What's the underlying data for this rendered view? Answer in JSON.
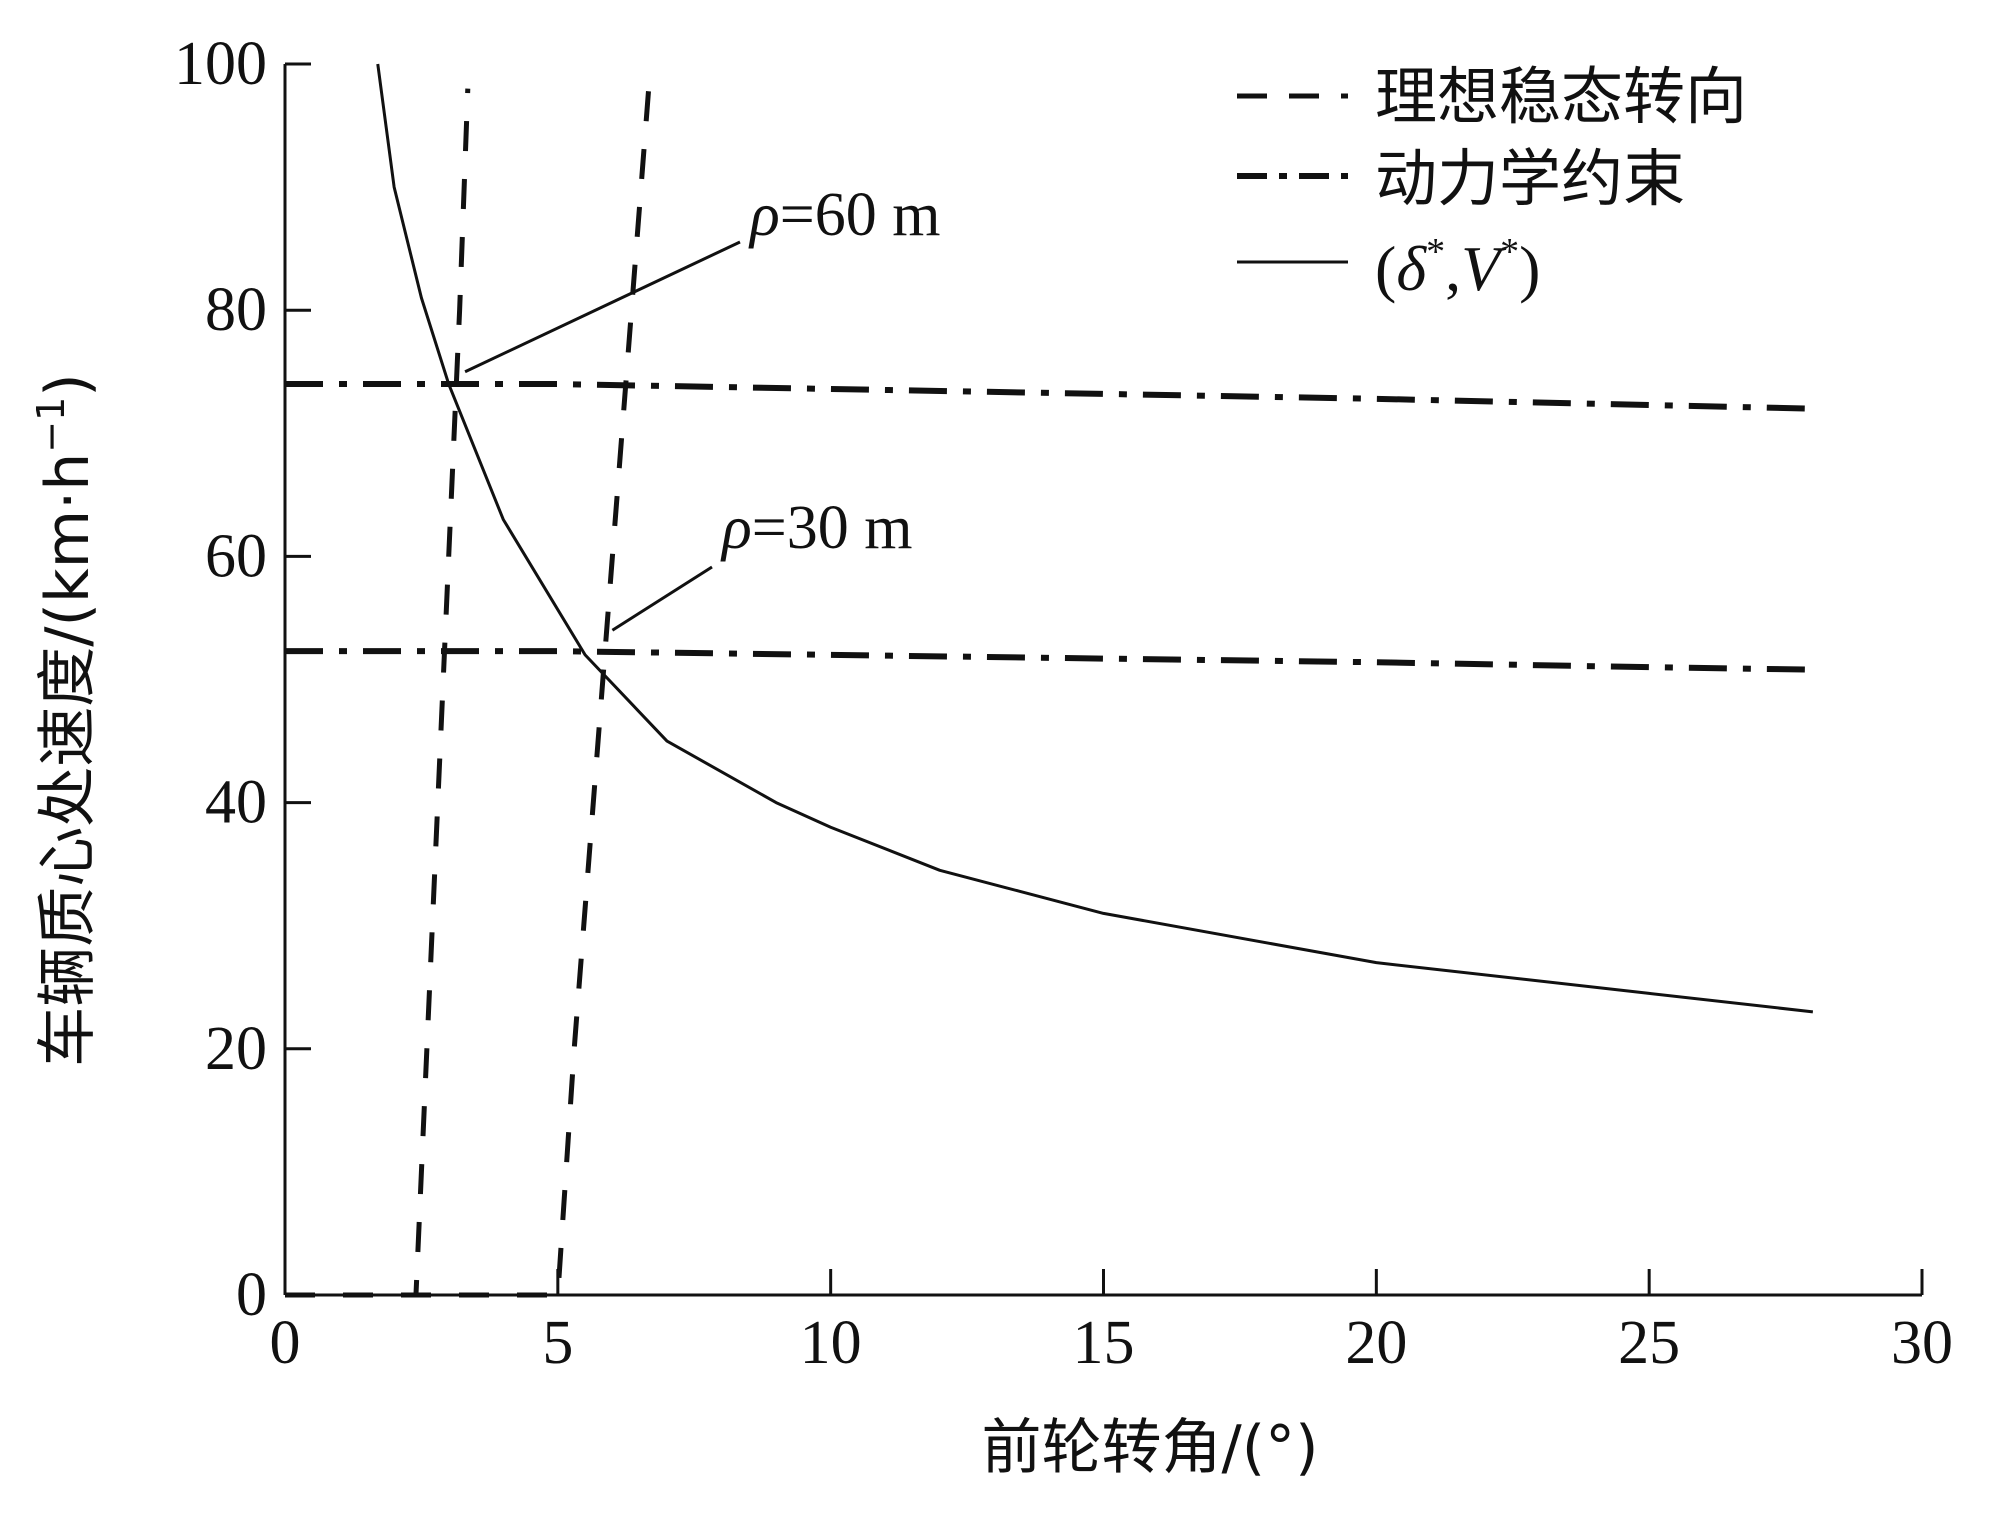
{
  "chart_data": {
    "type": "line",
    "xlabel": "前轮转角/(°)",
    "ylabel_text": "车辆质心处速度/(km·h",
    "ylabel_sup": "−1",
    "ylabel_close": ")",
    "xlim": [
      0,
      30
    ],
    "ylim": [
      0,
      100
    ],
    "x_ticks": [
      0,
      5,
      10,
      15,
      20,
      25,
      30
    ],
    "y_ticks": [
      0,
      20,
      40,
      60,
      80,
      100
    ],
    "x_tick_labels": [
      "0",
      "5",
      "10",
      "15",
      "20",
      "25",
      "30"
    ],
    "y_tick_labels": [
      "0",
      "20",
      "40",
      "60",
      "80",
      "100"
    ],
    "grid": false,
    "legend_position": "top-right",
    "legend": [
      {
        "style": "dashed",
        "label": "理想稳态转向"
      },
      {
        "style": "dashdot",
        "label": "动力学约束"
      },
      {
        "style": "solid",
        "label_open": "(",
        "label_delta": "δ",
        "label_star1": "*",
        "label_comma": ",",
        "label_v": "V",
        "label_star2": "*",
        "label_close": ")"
      }
    ],
    "series": [
      {
        "style": "dashed",
        "x": [
          0,
          2.4,
          2.6,
          2.8,
          3.0,
          3.2,
          3.35
        ],
        "y": [
          0,
          0,
          20,
          40,
          60,
          80,
          98
        ]
      },
      {
        "style": "dashed",
        "x": [
          0,
          5.0,
          5.3,
          5.65,
          6.0,
          6.35,
          6.7
        ],
        "y": [
          0,
          0,
          20,
          40,
          60,
          80,
          100
        ]
      },
      {
        "style": "dashdot",
        "x": [
          0,
          5,
          10,
          15,
          20,
          25,
          28
        ],
        "y": [
          74,
          74,
          73.6,
          73.2,
          72.8,
          72.3,
          72
        ]
      },
      {
        "style": "dashdot",
        "x": [
          0,
          5,
          10,
          15,
          20,
          25,
          28
        ],
        "y": [
          52.3,
          52.3,
          52.0,
          51.7,
          51.4,
          51.0,
          50.8
        ]
      },
      {
        "style": "solid",
        "x": [
          1.7,
          2.0,
          2.5,
          3.0,
          4.0,
          5.5,
          7.0,
          9.0,
          10.0,
          12.0,
          15.0,
          20.0,
          25.0,
          28.0
        ],
        "y": [
          100,
          90,
          81,
          74,
          63,
          52,
          45,
          40,
          38,
          34.5,
          31,
          27,
          24.5,
          23
        ]
      }
    ],
    "annotations": [
      {
        "rho": "ρ",
        "text": "=60 m",
        "x": 3.3,
        "y": 75
      },
      {
        "rho": "ρ",
        "text": "=30 m",
        "x": 6.0,
        "y": 54
      }
    ]
  }
}
